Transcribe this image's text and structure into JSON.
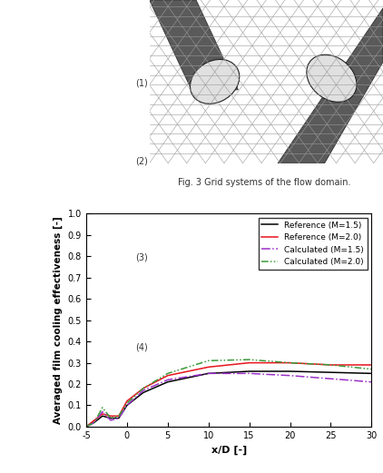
{
  "figure_caption": "Fig. 3 Grid systems of the flow domain.",
  "equation_numbers": [
    "(1)",
    "(2)",
    "(3)",
    "(4)"
  ],
  "chart_data": {
    "type": "line",
    "x_label": "x/D [-]",
    "y_label": "Averaged film cooling effectiveness [-]",
    "x": [
      -5,
      -4,
      -3,
      -2,
      -1,
      0,
      2,
      5,
      10,
      15,
      20,
      25,
      30
    ],
    "series": [
      {
        "name": "Reference (M=1.5)",
        "color": "#000000",
        "line_style": "solid",
        "values": [
          0.0,
          0.02,
          0.05,
          0.04,
          0.04,
          0.1,
          0.16,
          0.21,
          0.25,
          0.26,
          0.26,
          0.255,
          0.25
        ]
      },
      {
        "name": "Reference (M=2.0)",
        "color": "#e8141c",
        "line_style": "solid",
        "values": [
          0.0,
          0.03,
          0.06,
          0.05,
          0.05,
          0.12,
          0.18,
          0.24,
          0.28,
          0.3,
          0.3,
          0.29,
          0.29
        ]
      },
      {
        "name": "Calculated (M=1.5)",
        "color": "#9b30c8",
        "line_style": "dashdot",
        "values": [
          0.0,
          0.02,
          0.07,
          0.03,
          0.04,
          0.1,
          0.17,
          0.22,
          0.25,
          0.25,
          0.24,
          0.225,
          0.21
        ]
      },
      {
        "name": "Calculated (M=2.0)",
        "color": "#3a9a3a",
        "line_style": "dashdotdot",
        "values": [
          0.0,
          0.02,
          0.09,
          0.04,
          0.05,
          0.11,
          0.18,
          0.25,
          0.31,
          0.315,
          0.3,
          0.29,
          0.27
        ]
      }
    ],
    "xlim": [
      -5,
      30
    ],
    "xticks": [
      -5,
      0,
      5,
      10,
      15,
      20,
      25,
      30
    ],
    "ylim": [
      0.0,
      1.0
    ],
    "yticks": [
      {
        "value": 0.0,
        "label": "0.0"
      },
      {
        "value": 0.1,
        "label": "0.1"
      },
      {
        "value": 0.2,
        "label": "0.2"
      },
      {
        "value": 0.3,
        "label": "0.3"
      },
      {
        "value": 0.4,
        "label": "0.4"
      },
      {
        "value": 0.5,
        "label": "0.5"
      },
      {
        "value": 0.6,
        "label": "0.6"
      },
      {
        "value": 0.7,
        "label": "0.7"
      },
      {
        "value": 0.8,
        "label": "0.8"
      },
      {
        "value": 0.9,
        "label": "0.9"
      },
      {
        "value": 1.0,
        "label": "1.0"
      }
    ],
    "legend": "upper right",
    "grid": false
  }
}
